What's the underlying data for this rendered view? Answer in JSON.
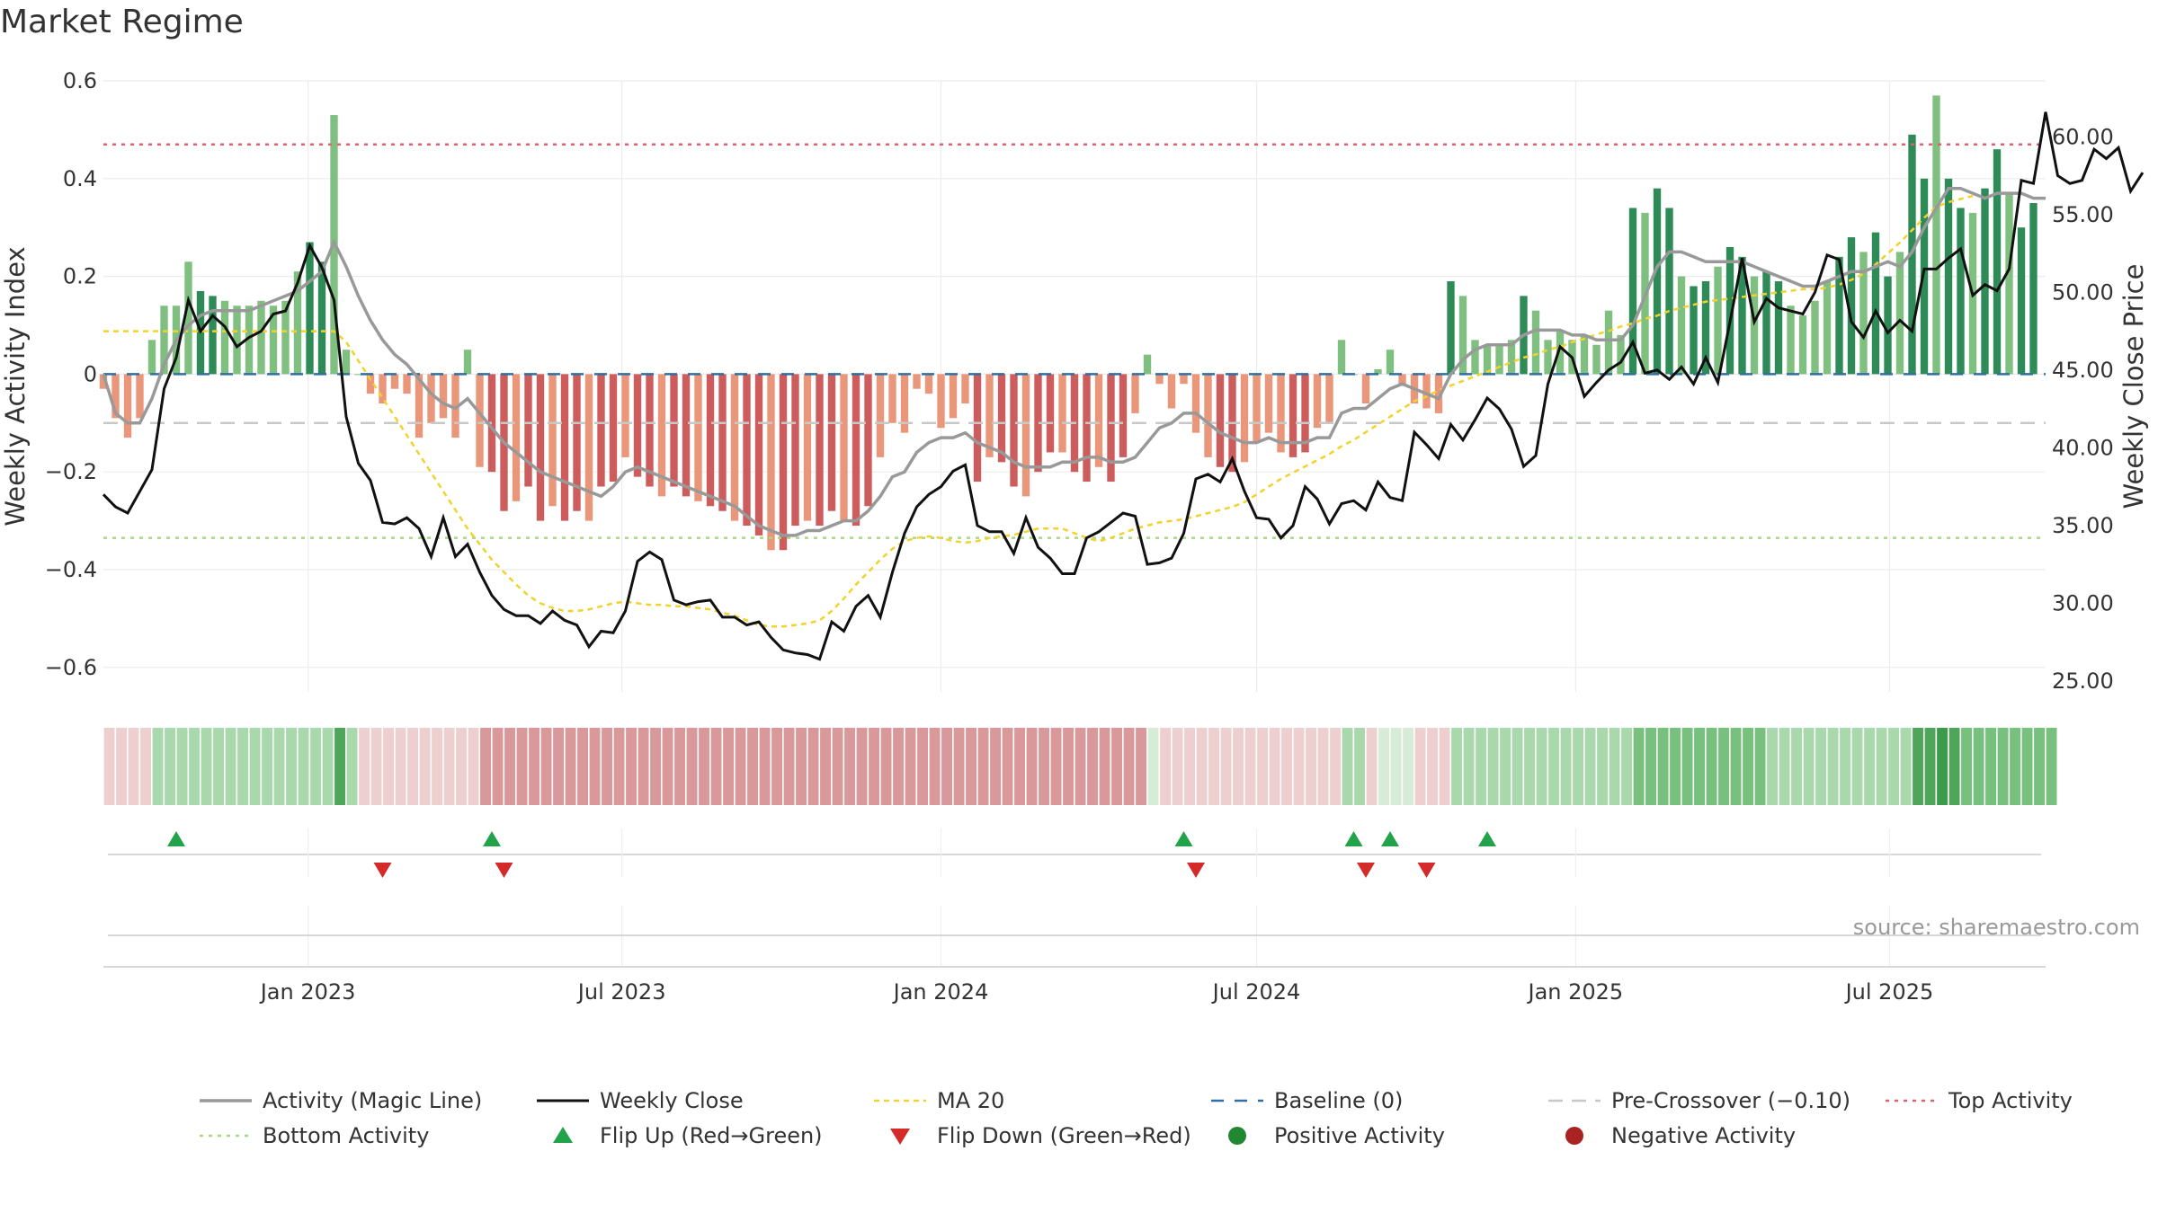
{
  "title": "Market Regime",
  "source": "source: sharemaestro.com",
  "colors": {
    "activity_line": "#999999",
    "weekly_close": "#111111",
    "ma20": "#f2d22e",
    "baseline": "#2f6fa3",
    "pre_crossover": "#c8c8c8",
    "top_activity": "#e06070",
    "bottom_activity": "#a8d880",
    "flip_up": "#22a34a",
    "flip_down": "#d42a2a",
    "positive": "#228833",
    "negative": "#aa2222",
    "bar_pos_strong": "#2e8b57",
    "bar_pos_light": "#7fbf7f",
    "bar_neg_strong": "#cd5c5c",
    "bar_neg_light": "#e9967a"
  },
  "chart_data": {
    "type": "bar",
    "title": "Market Regime",
    "ylabel_left": "Weekly Activity Index",
    "ylabel_right": "Weekly Close Price",
    "ylim_left": [
      -0.65,
      0.6
    ],
    "ylim_right": [
      24.3,
      63.6
    ],
    "yticks_left": [
      {
        "v": 0.6,
        "label": "0.6"
      },
      {
        "v": 0.4,
        "label": "0.4"
      },
      {
        "v": 0.2,
        "label": "0.2"
      },
      {
        "v": 0,
        "label": "0"
      },
      {
        "v": -0.2,
        "label": "−0.2"
      },
      {
        "v": -0.4,
        "label": "−0.4"
      },
      {
        "v": -0.6,
        "label": "−0.6"
      }
    ],
    "yticks_right": [
      {
        "v": 60,
        "label": "60.00"
      },
      {
        "v": 55,
        "label": "55.00"
      },
      {
        "v": 50,
        "label": "50.00"
      },
      {
        "v": 45,
        "label": "45.00"
      },
      {
        "v": 40,
        "label": "40.00"
      },
      {
        "v": 35,
        "label": "35.00"
      },
      {
        "v": 30,
        "label": "30.00"
      },
      {
        "v": 25,
        "label": "25.00"
      }
    ],
    "x_start": "2022-09-05",
    "x_end": "2025-09-29",
    "xticks": [
      {
        "date": "2023-01-01",
        "label": "Jan 2023"
      },
      {
        "date": "2023-07-01",
        "label": "Jul 2023"
      },
      {
        "date": "2024-01-01",
        "label": "Jan 2024"
      },
      {
        "date": "2024-07-01",
        "label": "Jul 2024"
      },
      {
        "date": "2025-01-01",
        "label": "Jan 2025"
      },
      {
        "date": "2025-07-01",
        "label": "Jul 2025"
      }
    ],
    "top_activity": 0.47,
    "bottom_activity": -0.335,
    "baseline": 0,
    "pre_crossover": -0.1,
    "activity_weekly": [
      -0.03,
      -0.09,
      -0.13,
      -0.09,
      0.07,
      0.14,
      0.14,
      0.23,
      0.17,
      0.16,
      0.15,
      0.14,
      0.14,
      0.15,
      0.14,
      0.15,
      0.21,
      0.27,
      0.23,
      0.53,
      0.05,
      0.0,
      -0.04,
      -0.06,
      -0.03,
      -0.04,
      -0.13,
      -0.1,
      -0.09,
      -0.13,
      0.05,
      -0.19,
      -0.2,
      -0.28,
      -0.26,
      -0.23,
      -0.3,
      -0.27,
      -0.3,
      -0.28,
      -0.3,
      -0.23,
      -0.22,
      -0.17,
      -0.21,
      -0.23,
      -0.25,
      -0.23,
      -0.25,
      -0.26,
      -0.27,
      -0.28,
      -0.3,
      -0.31,
      -0.33,
      -0.36,
      -0.36,
      -0.31,
      -0.3,
      -0.31,
      -0.28,
      -0.3,
      -0.31,
      -0.27,
      -0.17,
      -0.1,
      -0.12,
      -0.03,
      -0.04,
      -0.11,
      -0.09,
      -0.06,
      -0.22,
      -0.17,
      -0.18,
      -0.23,
      -0.25,
      -0.2,
      -0.16,
      -0.16,
      -0.2,
      -0.22,
      -0.19,
      -0.22,
      -0.17,
      -0.08,
      0.04,
      -0.02,
      -0.07,
      -0.02,
      -0.12,
      -0.17,
      -0.19,
      -0.2,
      -0.18,
      -0.14,
      -0.12,
      -0.16,
      -0.17,
      -0.16,
      -0.11,
      -0.1,
      0.07,
      0.0,
      -0.06,
      0.01,
      0.05,
      -0.02,
      -0.06,
      -0.07,
      -0.08,
      0.19,
      0.16,
      0.07,
      0.06,
      0.06,
      0.07,
      0.16,
      0.13,
      0.07,
      0.09,
      0.07,
      0.08,
      0.06,
      0.13,
      0.08,
      0.34,
      0.33,
      0.38,
      0.34,
      0.2,
      0.18,
      0.19,
      0.22,
      0.26,
      0.24,
      0.2,
      0.21,
      0.19,
      0.14,
      0.12,
      0.15,
      0.19,
      0.24,
      0.28,
      0.25,
      0.29,
      0.2,
      0.25,
      0.49,
      0.4,
      0.57,
      0.4,
      0.34,
      0.33,
      0.38,
      0.46,
      0.37,
      0.3,
      0.35
    ],
    "weekly_close": [
      37,
      36.2,
      35.8,
      37.2,
      38.6,
      43.8,
      45.8,
      49.5,
      47.5,
      48.5,
      47.8,
      46.5,
      47.1,
      47.5,
      48.6,
      48.8,
      50.6,
      53,
      51.6,
      49.5,
      42,
      39,
      37.9,
      35.2,
      35.1,
      35.5,
      34.8,
      33,
      35.5,
      33,
      33.8,
      32,
      30.5,
      29.6,
      29.2,
      29.2,
      28.7,
      29.5,
      28.9,
      28.6,
      27.2,
      28.2,
      28.1,
      29.5,
      32.7,
      33.3,
      32.8,
      30.2,
      29.9,
      30.1,
      30.2,
      29.1,
      29.1,
      28.6,
      28.8,
      27.8,
      27,
      26.8,
      26.7,
      26.4,
      28.8,
      28.2,
      29.8,
      30.5,
      29.1,
      32,
      34.5,
      36.2,
      37,
      37.5,
      38.5,
      38.9,
      35,
      34.6,
      34.6,
      33.2,
      35.5,
      33.6,
      32.9,
      31.9,
      31.9,
      34.2,
      34.6,
      35.2,
      35.8,
      35.6,
      32.5,
      32.6,
      32.9,
      34.5,
      38,
      38.3,
      37.8,
      39.3,
      37.2,
      35.5,
      35.4,
      34.2,
      35,
      37.5,
      36.7,
      35.1,
      36.4,
      36.6,
      36,
      37.8,
      36.8,
      36.6,
      41,
      40.2,
      39.3,
      41.5,
      40.5,
      41.8,
      43.2,
      42.5,
      41.2,
      38.8,
      39.5,
      44.1,
      46.5,
      45.8,
      43.3,
      44.2,
      45,
      45.5,
      46.8,
      44.8,
      45,
      44.4,
      45.2,
      44.1,
      45.8,
      44.2,
      48.1,
      52.2,
      48.1,
      49.6,
      49,
      48.8,
      48.6,
      50,
      52.4,
      52.1,
      48.1,
      47.1,
      48.8,
      47.4,
      48.2,
      47.5,
      51.5,
      51.5,
      52.2,
      52.8,
      49.8,
      50.5,
      50.1,
      51.5,
      57.2,
      57,
      61.6,
      57.5,
      57,
      57.2,
      59.2,
      58.6,
      59.3,
      56.5,
      57.7
    ],
    "magic_line": [
      0.0,
      -0.08,
      -0.1,
      -0.1,
      -0.05,
      0.02,
      0.07,
      0.1,
      0.12,
      0.13,
      0.13,
      0.13,
      0.13,
      0.14,
      0.15,
      0.16,
      0.17,
      0.19,
      0.21,
      0.27,
      0.22,
      0.16,
      0.11,
      0.07,
      0.04,
      0.02,
      -0.01,
      -0.04,
      -0.06,
      -0.07,
      -0.05,
      -0.08,
      -0.11,
      -0.14,
      -0.16,
      -0.18,
      -0.2,
      -0.21,
      -0.22,
      -0.23,
      -0.24,
      -0.25,
      -0.23,
      -0.2,
      -0.19,
      -0.2,
      -0.21,
      -0.22,
      -0.23,
      -0.24,
      -0.25,
      -0.26,
      -0.27,
      -0.29,
      -0.31,
      -0.32,
      -0.33,
      -0.33,
      -0.32,
      -0.32,
      -0.31,
      -0.3,
      -0.3,
      -0.28,
      -0.25,
      -0.21,
      -0.2,
      -0.16,
      -0.14,
      -0.13,
      -0.13,
      -0.12,
      -0.14,
      -0.15,
      -0.16,
      -0.18,
      -0.19,
      -0.19,
      -0.19,
      -0.18,
      -0.18,
      -0.17,
      -0.17,
      -0.18,
      -0.18,
      -0.17,
      -0.14,
      -0.11,
      -0.1,
      -0.08,
      -0.08,
      -0.1,
      -0.12,
      -0.13,
      -0.14,
      -0.14,
      -0.13,
      -0.14,
      -0.14,
      -0.14,
      -0.13,
      -0.13,
      -0.08,
      -0.07,
      -0.07,
      -0.05,
      -0.03,
      -0.02,
      -0.03,
      -0.04,
      -0.05,
      0.0,
      0.03,
      0.05,
      0.06,
      0.06,
      0.06,
      0.08,
      0.09,
      0.09,
      0.09,
      0.08,
      0.08,
      0.07,
      0.07,
      0.07,
      0.1,
      0.16,
      0.22,
      0.25,
      0.25,
      0.24,
      0.23,
      0.23,
      0.23,
      0.23,
      0.22,
      0.21,
      0.2,
      0.19,
      0.18,
      0.18,
      0.19,
      0.2,
      0.21,
      0.21,
      0.22,
      0.23,
      0.22,
      0.25,
      0.3,
      0.34,
      0.38,
      0.38,
      0.37,
      0.36,
      0.37,
      0.37,
      0.37,
      0.36,
      0.36
    ],
    "ma20": [
      47.5,
      47.5,
      47.5,
      47.5,
      47.5,
      47.5,
      47.5,
      47.5,
      47.5,
      47.5,
      47.5,
      47.5,
      47.5,
      47.5,
      47.5,
      47.5,
      47.5,
      47.5,
      47.5,
      47.5,
      46.8,
      45.6,
      44.4,
      43.2,
      42.0,
      40.8,
      39.6,
      38.4,
      37.2,
      36.0,
      34.8,
      33.8,
      32.8,
      32.0,
      31.2,
      30.5,
      30.0,
      29.7,
      29.5,
      29.5,
      29.6,
      29.8,
      30.0,
      30.1,
      30.0,
      29.9,
      29.9,
      29.8,
      29.8,
      29.7,
      29.6,
      29.4,
      29.2,
      28.9,
      28.6,
      28.5,
      28.5,
      28.6,
      28.7,
      28.9,
      29.5,
      30.3,
      31.2,
      32.0,
      32.8,
      33.5,
      34.0,
      34.2,
      34.3,
      34.2,
      34.0,
      33.9,
      34.0,
      34.2,
      34.3,
      34.4,
      34.6,
      34.8,
      34.8,
      34.8,
      34.5,
      34.2,
      34.0,
      34.2,
      34.5,
      34.8,
      35.0,
      35.2,
      35.3,
      35.4,
      35.6,
      35.8,
      36.0,
      36.2,
      36.5,
      37.0,
      37.5,
      38.0,
      38.4,
      38.8,
      39.2,
      39.6,
      40.1,
      40.5,
      41.0,
      41.5,
      42.0,
      42.5,
      43.0,
      43.3,
      43.7,
      44.0,
      44.3,
      44.6,
      44.9,
      45.2,
      45.5,
      45.8,
      46.0,
      46.3,
      46.5,
      46.8,
      47.0,
      47.3,
      47.5,
      47.8,
      48.0,
      48.3,
      48.5,
      48.8,
      49.0,
      49.2,
      49.4,
      49.5,
      49.6,
      49.7,
      49.8,
      49.9,
      50.0,
      50.1,
      50.2,
      50.2,
      50.3,
      50.5,
      50.8,
      51.2,
      51.8,
      52.5,
      53.2,
      54.0,
      54.8,
      55.5,
      55.8,
      56.0,
      56.2
    ],
    "regime_strip": [
      -1,
      -1,
      -1,
      -1,
      1,
      1,
      1,
      1,
      1,
      1,
      1,
      1,
      1,
      1,
      1,
      1,
      1,
      1,
      1,
      3,
      1,
      -1,
      -1,
      -1,
      -1,
      -1,
      -1,
      -1,
      -1,
      -1,
      -1,
      -2,
      -2,
      -2,
      -2,
      -2,
      -2,
      -2,
      -2,
      -2,
      -2,
      -2,
      -2,
      -2,
      -2,
      -2,
      -2,
      -2,
      -2,
      -2,
      -2,
      -2,
      -2,
      -2,
      -2,
      -2,
      -2,
      -2,
      -2,
      -2,
      -2,
      -2,
      -2,
      -2,
      -2,
      -2,
      -2,
      -2,
      -2,
      -2,
      -2,
      -2,
      -2,
      -2,
      -2,
      -2,
      -2,
      -2,
      -2,
      -2,
      -2,
      -2,
      -2,
      -2,
      -2,
      -2,
      0,
      -1,
      -1,
      -1,
      -1,
      -1,
      -1,
      -1,
      -1,
      -1,
      -1,
      -1,
      -1,
      -1,
      -1,
      -1,
      1,
      1,
      -1,
      0,
      0,
      0,
      -1,
      -1,
      -1,
      1,
      1,
      1,
      1,
      1,
      1,
      1,
      1,
      1,
      1,
      1,
      1,
      1,
      1,
      1,
      2,
      2,
      2,
      2,
      2,
      2,
      2,
      2,
      2,
      2,
      2,
      1,
      1,
      1,
      1,
      1,
      1,
      1,
      1,
      1,
      1,
      1,
      1,
      3,
      3,
      4,
      3,
      2,
      2,
      2,
      2,
      2,
      2,
      2,
      2
    ],
    "flip_up": [
      "2022-10-17",
      "2023-04-17",
      "2024-05-20",
      "2024-08-26",
      "2024-09-16",
      "2024-11-11"
    ],
    "flip_down": [
      "2023-02-13",
      "2023-04-24",
      "2024-05-27",
      "2024-09-02",
      "2024-10-07"
    ],
    "legend": [
      {
        "key": "activity",
        "label": "Activity (Magic Line)"
      },
      {
        "key": "close",
        "label": "Weekly Close"
      },
      {
        "key": "ma20",
        "label": "MA 20"
      },
      {
        "key": "baseline",
        "label": "Baseline (0)"
      },
      {
        "key": "precross",
        "label": "Pre-Crossover (−0.10)"
      },
      {
        "key": "top",
        "label": "Top Activity"
      },
      {
        "key": "bottom",
        "label": "Bottom Activity"
      },
      {
        "key": "flipup",
        "label": "Flip Up (Red→Green)"
      },
      {
        "key": "flipdown",
        "label": "Flip Down (Green→Red)"
      },
      {
        "key": "pos",
        "label": "Positive Activity"
      },
      {
        "key": "neg",
        "label": "Negative Activity"
      }
    ]
  }
}
